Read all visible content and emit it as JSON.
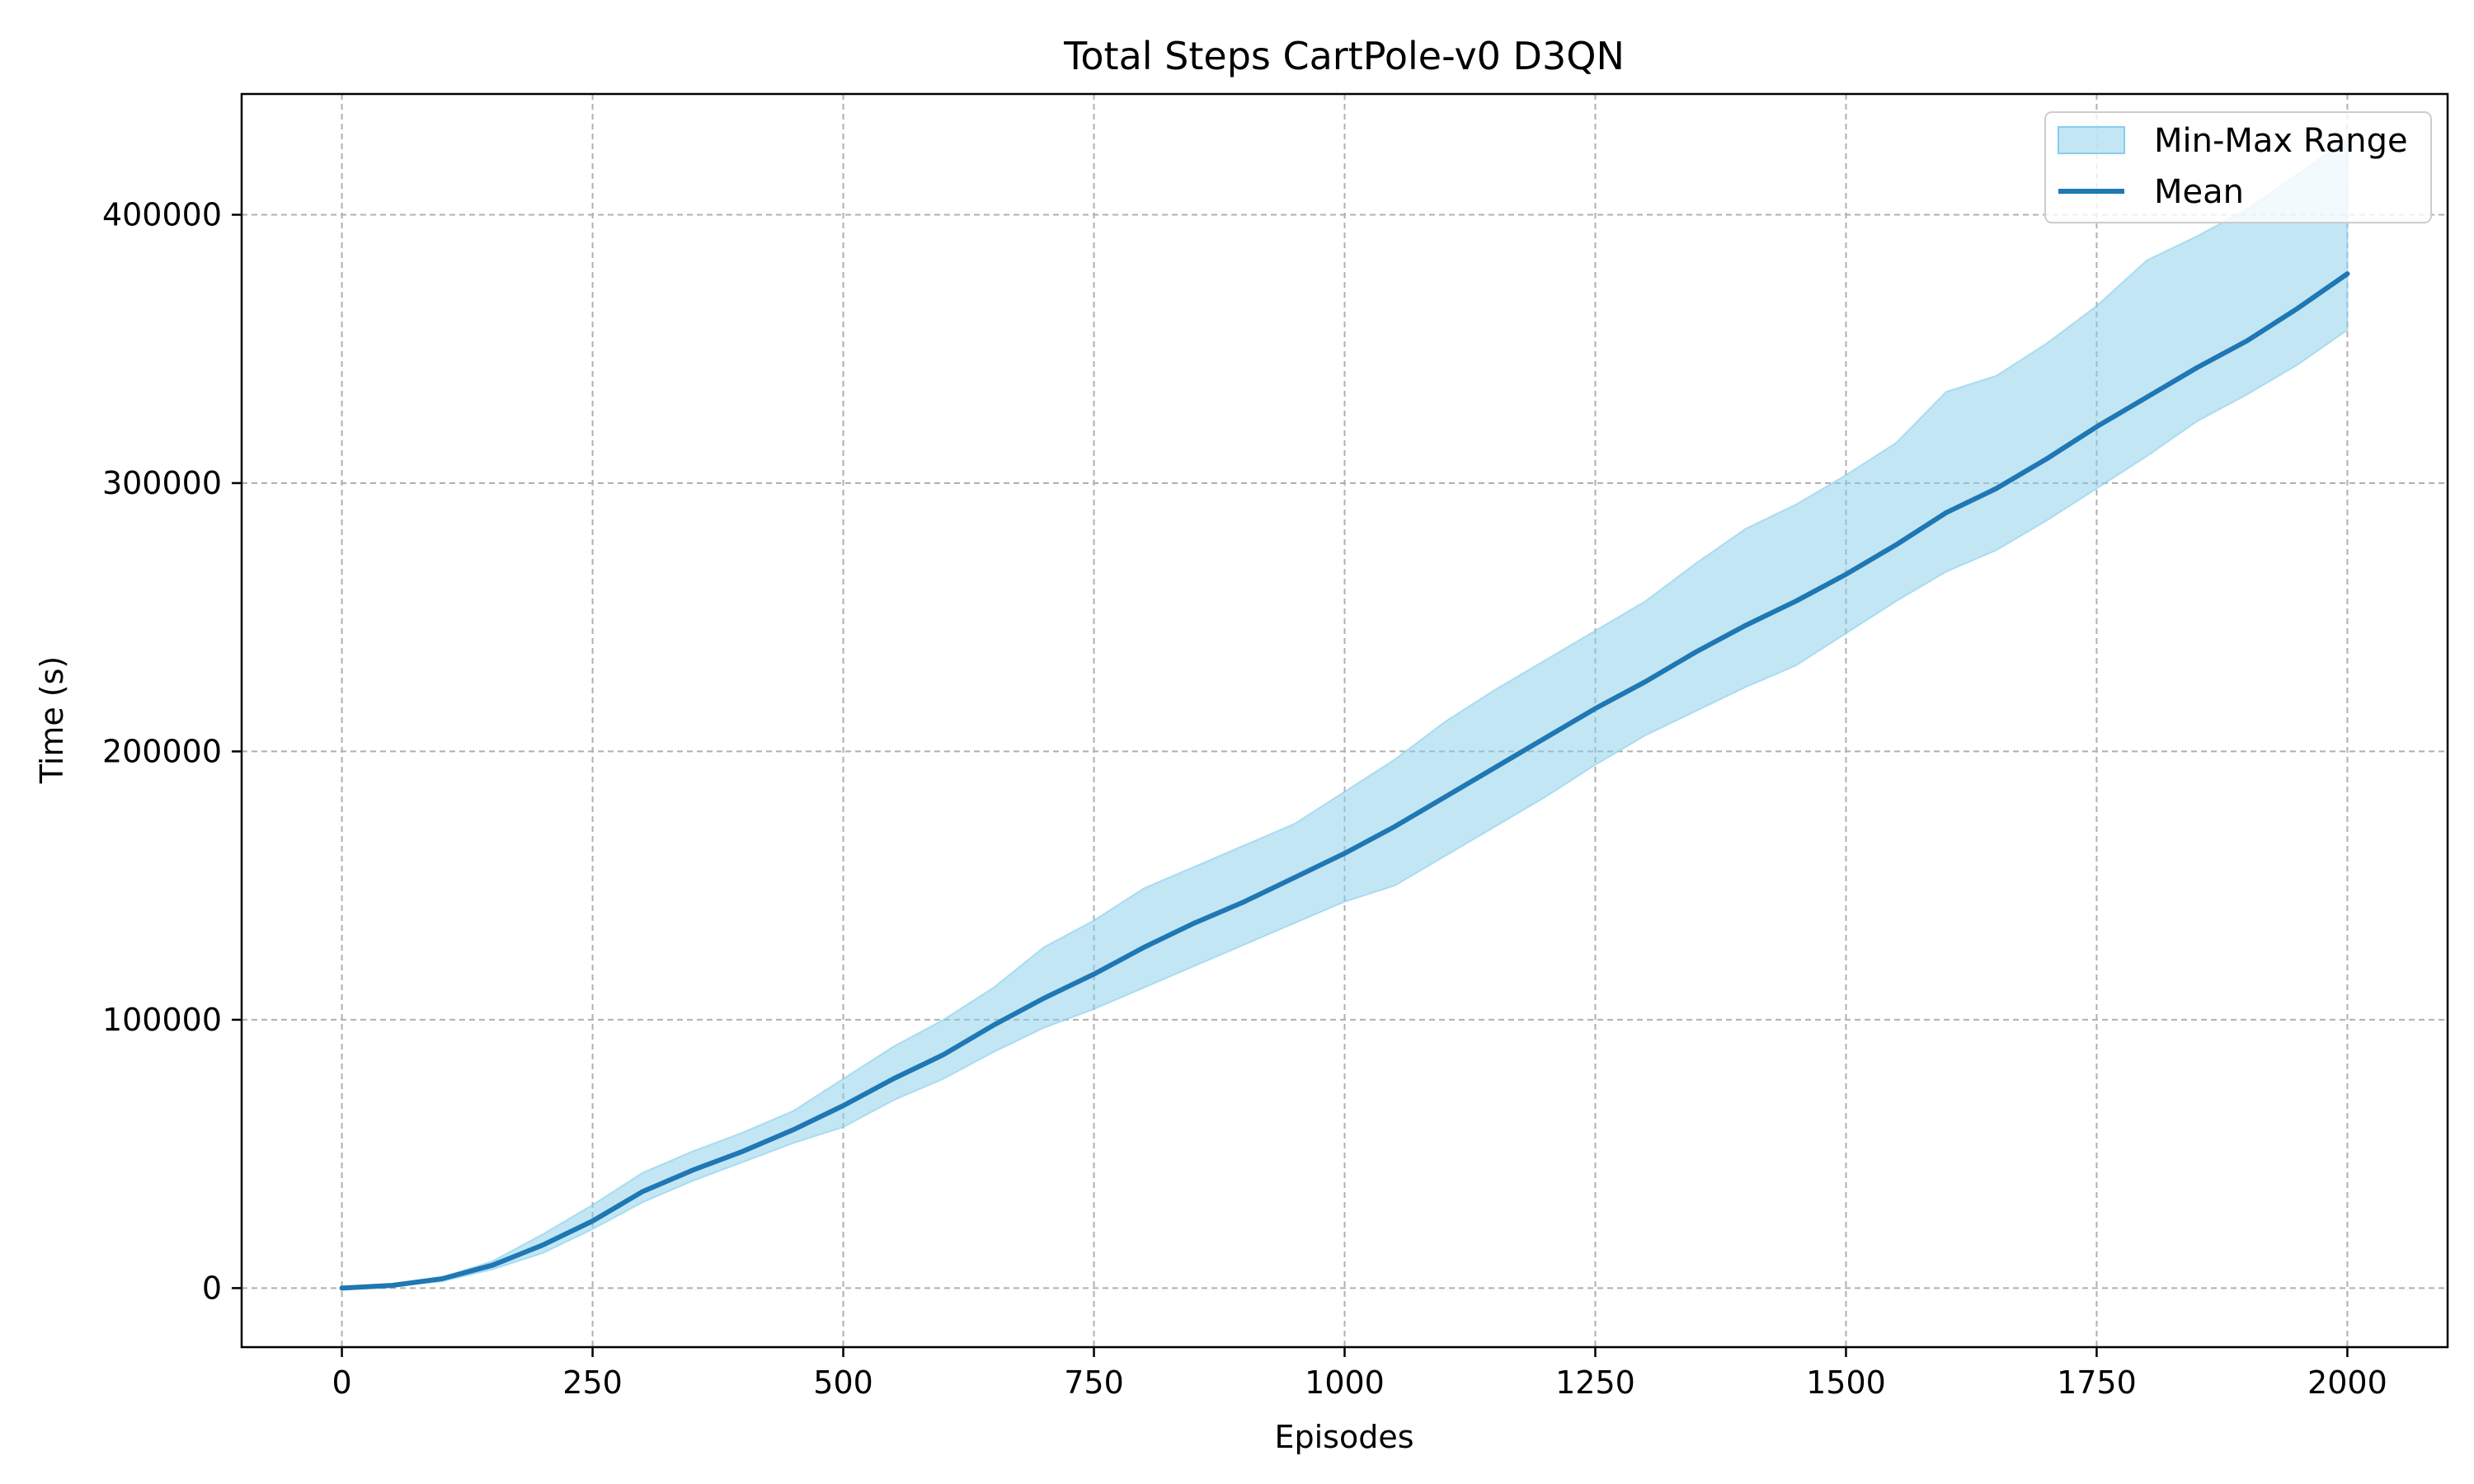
{
  "chart_data": {
    "type": "area",
    "title": "Total Steps CartPole-v0 D3QN",
    "xlabel": "Episodes",
    "ylabel": "Time (s)",
    "xlim": [
      -100,
      2100
    ],
    "ylim": [
      -22000,
      445000
    ],
    "xticks": [
      0,
      250,
      500,
      750,
      1000,
      1250,
      1500,
      1750,
      2000
    ],
    "yticks": [
      0,
      100000,
      200000,
      300000,
      400000
    ],
    "grid": true,
    "legend_position": "top-right",
    "colors": {
      "band": "#87ceeb",
      "mean": "#1f77b4"
    },
    "series": [
      {
        "name": "Min-Max Range",
        "kind": "band",
        "x": [
          0,
          50,
          100,
          150,
          200,
          250,
          300,
          350,
          400,
          450,
          500,
          550,
          600,
          650,
          700,
          750,
          800,
          850,
          900,
          950,
          1000,
          1050,
          1100,
          1150,
          1200,
          1250,
          1300,
          1350,
          1400,
          1450,
          1500,
          1550,
          1600,
          1650,
          1700,
          1750,
          1800,
          1850,
          1900,
          1950,
          2000
        ],
        "min": [
          0,
          700,
          2500,
          7000,
          13000,
          22000,
          32000,
          40000,
          47000,
          54000,
          60000,
          70000,
          78000,
          88000,
          97000,
          104000,
          112000,
          120000,
          128000,
          136000,
          144000,
          150000,
          161000,
          172000,
          183000,
          195000,
          206000,
          215000,
          224000,
          232000,
          244000,
          256000,
          267000,
          275000,
          286000,
          298000,
          310000,
          323000,
          333000,
          344000,
          357000
        ],
        "max": [
          0,
          1300,
          4000,
          10000,
          20000,
          31000,
          43000,
          51000,
          58000,
          66000,
          78000,
          90000,
          100000,
          112000,
          127000,
          137000,
          149000,
          157000,
          165000,
          173000,
          185000,
          197000,
          211000,
          223000,
          234000,
          245000,
          256000,
          270000,
          283000,
          292000,
          303000,
          315000,
          334000,
          340000,
          352000,
          366000,
          383000,
          392000,
          402000,
          415000,
          428000
        ]
      },
      {
        "name": "Mean",
        "kind": "line",
        "x": [
          0,
          50,
          100,
          150,
          200,
          250,
          300,
          350,
          400,
          450,
          500,
          550,
          600,
          650,
          700,
          750,
          800,
          850,
          900,
          950,
          1000,
          1050,
          1100,
          1150,
          1200,
          1250,
          1300,
          1350,
          1400,
          1450,
          1500,
          1550,
          1600,
          1650,
          1700,
          1750,
          1800,
          1850,
          1900,
          1950,
          2000
        ],
        "values": [
          0,
          1000,
          3500,
          8500,
          16000,
          25000,
          36000,
          44000,
          51000,
          59000,
          68000,
          78000,
          87000,
          98000,
          108000,
          117000,
          127000,
          136000,
          144000,
          153000,
          162000,
          172000,
          183000,
          194000,
          205000,
          216000,
          226000,
          237000,
          247000,
          256000,
          266000,
          277000,
          289000,
          298000,
          309000,
          321000,
          332000,
          343000,
          353000,
          365000,
          378000
        ]
      }
    ]
  }
}
